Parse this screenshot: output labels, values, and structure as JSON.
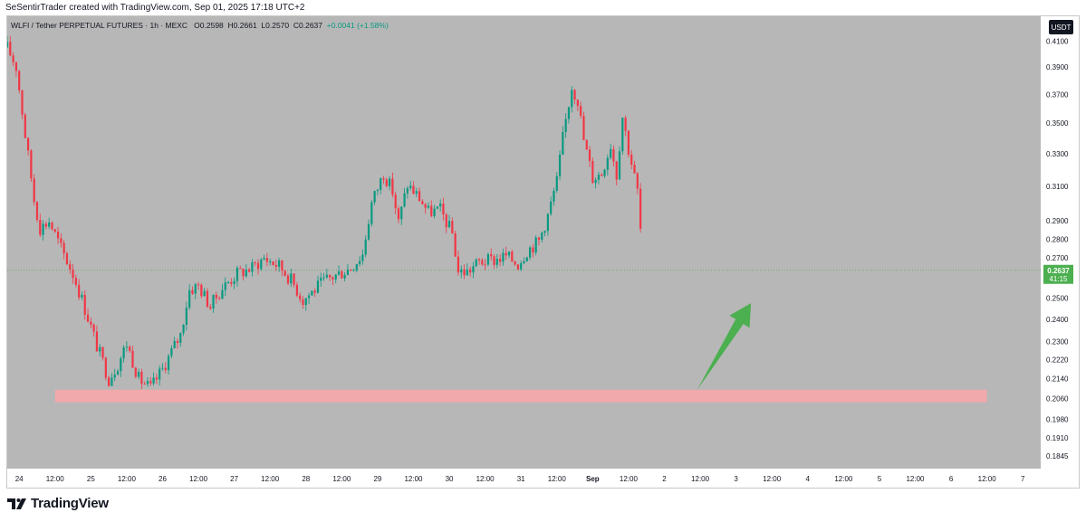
{
  "header": {
    "attribution": "SeSentirTrader created with TradingView.com, Sep 01, 2025 17:18 UTC+2"
  },
  "legend": {
    "symbol": "WLFI / Tether PERPETUAL FUTURES · 1h · MEXC",
    "open": "O0.2598",
    "high": "H0.2661",
    "low": "L0.2570",
    "close": "C0.2637",
    "change": "+0.0041 (+1.58%)"
  },
  "price_axis": {
    "currency_badge": "USDT",
    "ticks": [
      "0.4100",
      "0.3900",
      "0.3700",
      "0.3500",
      "0.3300",
      "0.3100",
      "0.2900",
      "0.2800",
      "0.2700",
      "0.2500",
      "0.2400",
      "0.2300",
      "0.2220",
      "0.2140",
      "0.2060",
      "0.1980",
      "0.1910",
      "0.1845"
    ],
    "last_price": "0.2637",
    "countdown": "41:15"
  },
  "time_axis": {
    "ticks": [
      "24",
      "12:00",
      "25",
      "12:00",
      "26",
      "12:00",
      "27",
      "12:00",
      "28",
      "12:00",
      "29",
      "12:00",
      "30",
      "12:00",
      "31",
      "12:00",
      "Sep",
      "12:00",
      "2",
      "12:00",
      "3",
      "12:00",
      "4",
      "12:00",
      "5",
      "12:00",
      "6",
      "12:00",
      "7"
    ]
  },
  "footer": {
    "logo_text": "TradingView"
  },
  "colors": {
    "background": "#b7b7b7",
    "up": "#089981",
    "down": "#f23645",
    "zone": "#f2a9ab",
    "arrow": "#4caf50",
    "last_price_badge": "#4caf50"
  },
  "chart_data": {
    "type": "candlestick",
    "interval": "1h",
    "y_scale": "log",
    "ylim": [
      0.18,
      0.43
    ],
    "x_range": [
      "Aug 23 20:00",
      "Sep 07 06:00"
    ],
    "last_price": 0.2637,
    "support_zone": {
      "low": 0.2045,
      "high": 0.2095,
      "from": "Aug 24 12:00",
      "to": "Sep 06 12:00"
    },
    "projection_arrow": {
      "from": {
        "x": "Sep 02 11:00",
        "y": 0.2095
      },
      "to": {
        "x": "Sep 03 05:00",
        "y": 0.2475
      }
    },
    "path_close": [
      [
        "Aug 23 20:00",
        0.405
      ],
      [
        "Aug 23 23:00",
        0.39
      ],
      [
        "Aug 24 02:00",
        0.342
      ],
      [
        "Aug 24 05:00",
        0.302
      ],
      [
        "Aug 24 07:00",
        0.286
      ],
      [
        "Aug 24 10:00",
        0.29
      ],
      [
        "Aug 24 14:00",
        0.275
      ],
      [
        "Aug 24 18:00",
        0.262
      ],
      [
        "Aug 24 22:00",
        0.245
      ],
      [
        "Aug 25 02:00",
        0.228
      ],
      [
        "Aug 25 06:00",
        0.214
      ],
      [
        "Aug 25 09:00",
        0.22
      ],
      [
        "Aug 25 12:00",
        0.229
      ],
      [
        "Aug 25 16:00",
        0.214
      ],
      [
        "Aug 25 20:00",
        0.21
      ],
      [
        "Aug 26 00:00",
        0.218
      ],
      [
        "Aug 26 06:00",
        0.233
      ],
      [
        "Aug 26 09:00",
        0.254
      ],
      [
        "Aug 26 12:00",
        0.256
      ],
      [
        "Aug 26 16:00",
        0.246
      ],
      [
        "Aug 26 20:00",
        0.255
      ],
      [
        "Aug 27 01:00",
        0.262
      ],
      [
        "Aug 27 06:00",
        0.265
      ],
      [
        "Aug 27 10:00",
        0.27
      ],
      [
        "Aug 27 15:00",
        0.266
      ],
      [
        "Aug 27 19:00",
        0.259
      ],
      [
        "Aug 27 23:00",
        0.249
      ],
      [
        "Aug 28 02:00",
        0.253
      ],
      [
        "Aug 28 06:00",
        0.258
      ],
      [
        "Aug 28 11:00",
        0.262
      ],
      [
        "Aug 28 15:00",
        0.265
      ],
      [
        "Aug 28 19:00",
        0.272
      ],
      [
        "Aug 28 22:00",
        0.3
      ],
      [
        "Aug 29 02:00",
        0.318
      ],
      [
        "Aug 29 05:00",
        0.307
      ],
      [
        "Aug 29 07:00",
        0.289
      ],
      [
        "Aug 29 10:00",
        0.311
      ],
      [
        "Aug 29 14:00",
        0.303
      ],
      [
        "Aug 29 17:00",
        0.295
      ],
      [
        "Aug 29 21:00",
        0.296
      ],
      [
        "Aug 30 01:00",
        0.283
      ],
      [
        "Aug 30 03:00",
        0.263
      ],
      [
        "Aug 30 06:00",
        0.263
      ],
      [
        "Aug 30 10:00",
        0.268
      ],
      [
        "Aug 30 15:00",
        0.269
      ],
      [
        "Aug 30 19:00",
        0.271
      ],
      [
        "Aug 30 23:00",
        0.267
      ],
      [
        "Aug 31 02:00",
        0.274
      ],
      [
        "Aug 31 06:00",
        0.279
      ],
      [
        "Aug 31 09:00",
        0.293
      ],
      [
        "Aug 31 12:00",
        0.313
      ],
      [
        "Aug 31 14:00",
        0.34
      ],
      [
        "Aug 31 17:00",
        0.376
      ],
      [
        "Aug 31 19:00",
        0.366
      ],
      [
        "Aug 31 21:00",
        0.339
      ],
      [
        "Sep 01 00:00",
        0.315
      ],
      [
        "Sep 01 03:00",
        0.318
      ],
      [
        "Sep 01 06:00",
        0.336
      ],
      [
        "Sep 01 08:00",
        0.317
      ],
      [
        "Sep 01 10:00",
        0.355
      ],
      [
        "Sep 01 12:00",
        0.333
      ],
      [
        "Sep 01 15:00",
        0.307
      ],
      [
        "Sep 01 17:00",
        0.263
      ]
    ]
  }
}
